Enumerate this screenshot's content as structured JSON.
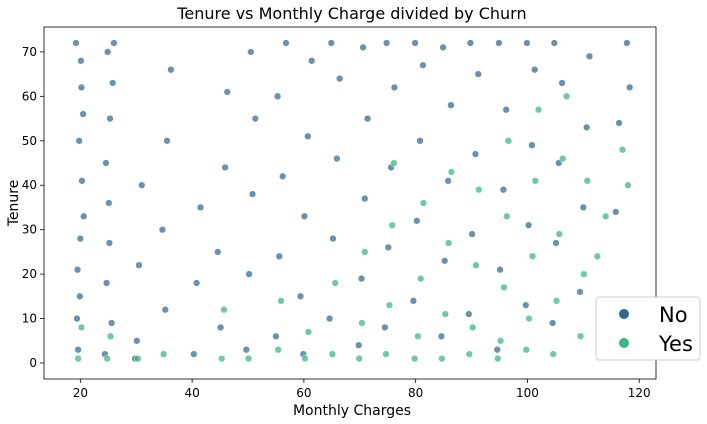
{
  "chart_data": {
    "type": "scatter",
    "title": "Tenure vs Monthly Charge divided by Churn",
    "xlabel": "Monthly Charges",
    "ylabel": "Tenure",
    "xlim": [
      13.5,
      123
    ],
    "ylim": [
      -3.6,
      75.6
    ],
    "xticks": [
      20,
      40,
      60,
      80,
      100,
      120
    ],
    "yticks": [
      0,
      10,
      20,
      30,
      40,
      50,
      60,
      70
    ],
    "grid": false,
    "legend_position": "lower-right",
    "series": [
      {
        "name": "No",
        "color": "#31688e",
        "points": [
          [
            19.2,
            72
          ],
          [
            19.6,
            3
          ],
          [
            19.9,
            15
          ],
          [
            20.0,
            28
          ],
          [
            20.3,
            41
          ],
          [
            20.5,
            56
          ],
          [
            20.1,
            68
          ],
          [
            19.4,
            10
          ],
          [
            20.6,
            33
          ],
          [
            19.8,
            50
          ],
          [
            20.2,
            62
          ],
          [
            19.5,
            21
          ],
          [
            24.4,
            2
          ],
          [
            24.7,
            18
          ],
          [
            25.1,
            36
          ],
          [
            25.3,
            55
          ],
          [
            24.9,
            70
          ],
          [
            25.6,
            9
          ],
          [
            24.6,
            45
          ],
          [
            25.2,
            27
          ],
          [
            25.8,
            63
          ],
          [
            26.0,
            72
          ],
          [
            30.1,
            5
          ],
          [
            30.5,
            22
          ],
          [
            31.0,
            40
          ],
          [
            29.8,
            1
          ],
          [
            35.2,
            12
          ],
          [
            34.7,
            30
          ],
          [
            35.5,
            50
          ],
          [
            36.2,
            66
          ],
          [
            40.3,
            2
          ],
          [
            40.8,
            18
          ],
          [
            41.5,
            35
          ],
          [
            45.1,
            8
          ],
          [
            44.6,
            25
          ],
          [
            45.9,
            44
          ],
          [
            46.3,
            61
          ],
          [
            49.7,
            3
          ],
          [
            50.2,
            20
          ],
          [
            50.8,
            38
          ],
          [
            51.3,
            55
          ],
          [
            50.5,
            70
          ],
          [
            55.0,
            6
          ],
          [
            55.6,
            24
          ],
          [
            56.2,
            42
          ],
          [
            55.3,
            60
          ],
          [
            56.8,
            72
          ],
          [
            59.4,
            15
          ],
          [
            60.1,
            33
          ],
          [
            60.7,
            51
          ],
          [
            61.4,
            68
          ],
          [
            59.9,
            2
          ],
          [
            64.6,
            10
          ],
          [
            65.2,
            28
          ],
          [
            65.9,
            46
          ],
          [
            66.4,
            64
          ],
          [
            64.9,
            72
          ],
          [
            69.8,
            4
          ],
          [
            70.3,
            19
          ],
          [
            70.9,
            37
          ],
          [
            71.4,
            55
          ],
          [
            70.6,
            71
          ],
          [
            74.5,
            8
          ],
          [
            75.1,
            26
          ],
          [
            75.6,
            44
          ],
          [
            76.2,
            62
          ],
          [
            74.8,
            72
          ],
          [
            79.6,
            14
          ],
          [
            80.2,
            32
          ],
          [
            80.8,
            50
          ],
          [
            81.3,
            67
          ],
          [
            79.9,
            72
          ],
          [
            84.6,
            6
          ],
          [
            85.2,
            23
          ],
          [
            85.8,
            41
          ],
          [
            86.3,
            58
          ],
          [
            84.9,
            71
          ],
          [
            89.5,
            11
          ],
          [
            90.1,
            29
          ],
          [
            90.7,
            47
          ],
          [
            91.2,
            65
          ],
          [
            89.8,
            72
          ],
          [
            94.6,
            3
          ],
          [
            95.1,
            21
          ],
          [
            95.7,
            39
          ],
          [
            96.2,
            57
          ],
          [
            94.9,
            72
          ],
          [
            99.7,
            13
          ],
          [
            100.2,
            31
          ],
          [
            100.8,
            49
          ],
          [
            101.3,
            66
          ],
          [
            99.9,
            72
          ],
          [
            104.5,
            9
          ],
          [
            105.1,
            27
          ],
          [
            105.6,
            45
          ],
          [
            106.2,
            63
          ],
          [
            104.8,
            72
          ],
          [
            109.4,
            16
          ],
          [
            110.0,
            35
          ],
          [
            110.6,
            53
          ],
          [
            111.1,
            69
          ],
          [
            115.8,
            34
          ],
          [
            116.4,
            54
          ],
          [
            117.8,
            72
          ],
          [
            118.3,
            62
          ]
        ]
      },
      {
        "name": "Yes",
        "color": "#35b779",
        "points": [
          [
            19.6,
            1
          ],
          [
            20.2,
            8
          ],
          [
            24.8,
            1
          ],
          [
            25.4,
            6
          ],
          [
            30.3,
            1
          ],
          [
            34.9,
            2
          ],
          [
            45.3,
            1
          ],
          [
            45.7,
            12
          ],
          [
            50.1,
            1
          ],
          [
            55.4,
            3
          ],
          [
            55.9,
            14
          ],
          [
            60.2,
            1
          ],
          [
            60.8,
            7
          ],
          [
            65.1,
            2
          ],
          [
            65.6,
            18
          ],
          [
            69.9,
            1
          ],
          [
            70.4,
            9
          ],
          [
            70.9,
            25
          ],
          [
            74.7,
            2
          ],
          [
            75.3,
            13
          ],
          [
            75.8,
            31
          ],
          [
            76.1,
            45
          ],
          [
            79.8,
            1
          ],
          [
            80.4,
            6
          ],
          [
            80.9,
            19
          ],
          [
            81.4,
            36
          ],
          [
            84.7,
            1
          ],
          [
            85.3,
            11
          ],
          [
            85.9,
            27
          ],
          [
            86.4,
            43
          ],
          [
            89.6,
            2
          ],
          [
            90.2,
            8
          ],
          [
            90.8,
            22
          ],
          [
            91.3,
            39
          ],
          [
            94.7,
            1
          ],
          [
            95.2,
            5
          ],
          [
            95.8,
            17
          ],
          [
            96.3,
            33
          ],
          [
            96.6,
            50
          ],
          [
            99.8,
            3
          ],
          [
            100.3,
            10
          ],
          [
            100.9,
            24
          ],
          [
            101.4,
            41
          ],
          [
            102.0,
            57
          ],
          [
            104.6,
            2
          ],
          [
            105.2,
            14
          ],
          [
            105.7,
            29
          ],
          [
            106.3,
            46
          ],
          [
            107.0,
            60
          ],
          [
            109.5,
            6
          ],
          [
            110.1,
            20
          ],
          [
            110.7,
            41
          ],
          [
            112.5,
            24
          ],
          [
            114.0,
            33
          ],
          [
            117.0,
            48
          ],
          [
            118.0,
            40
          ]
        ]
      }
    ]
  }
}
